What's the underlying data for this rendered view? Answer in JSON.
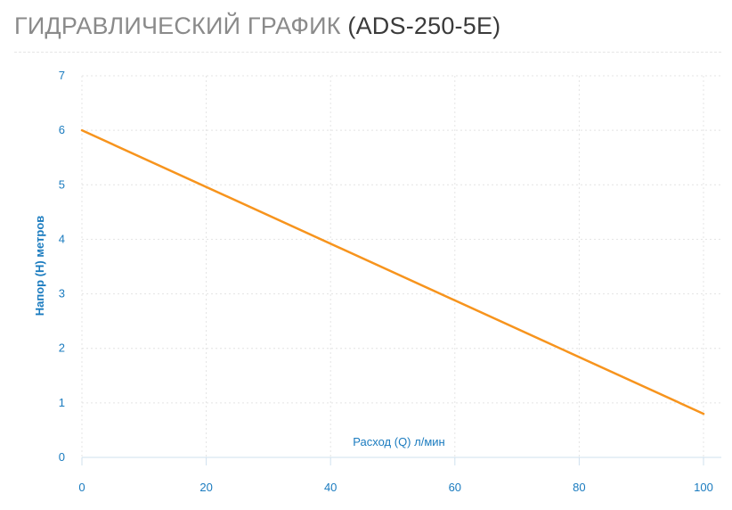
{
  "header": {
    "title_main": "ГИДРАВЛИЧЕСКИЙ ГРАФИК",
    "title_model": "(ADS-250-5E)"
  },
  "colors": {
    "title_main": "#8a8a8a",
    "title_model": "#3a3a3a",
    "axis_text": "#1a7bbf",
    "series_line": "#f7941d",
    "grid": "#e4e4e4",
    "axis_line": "#cfe0ee"
  },
  "chart_data": {
    "type": "line",
    "title": "ГИДРАВЛИЧЕСКИЙ ГРАФИК (ADS-250-5E)",
    "xlabel": "Расход (Q) л/мин",
    "ylabel": "Напор (Н) метров",
    "xlim": [
      0,
      100
    ],
    "ylim": [
      0,
      7
    ],
    "x_ticks": [
      0,
      20,
      40,
      60,
      80,
      100
    ],
    "y_ticks": [
      0,
      1,
      2,
      3,
      4,
      5,
      6,
      7
    ],
    "grid": true,
    "series": [
      {
        "x": [
          0,
          100
        ],
        "y": [
          6.0,
          0.8
        ]
      }
    ]
  }
}
